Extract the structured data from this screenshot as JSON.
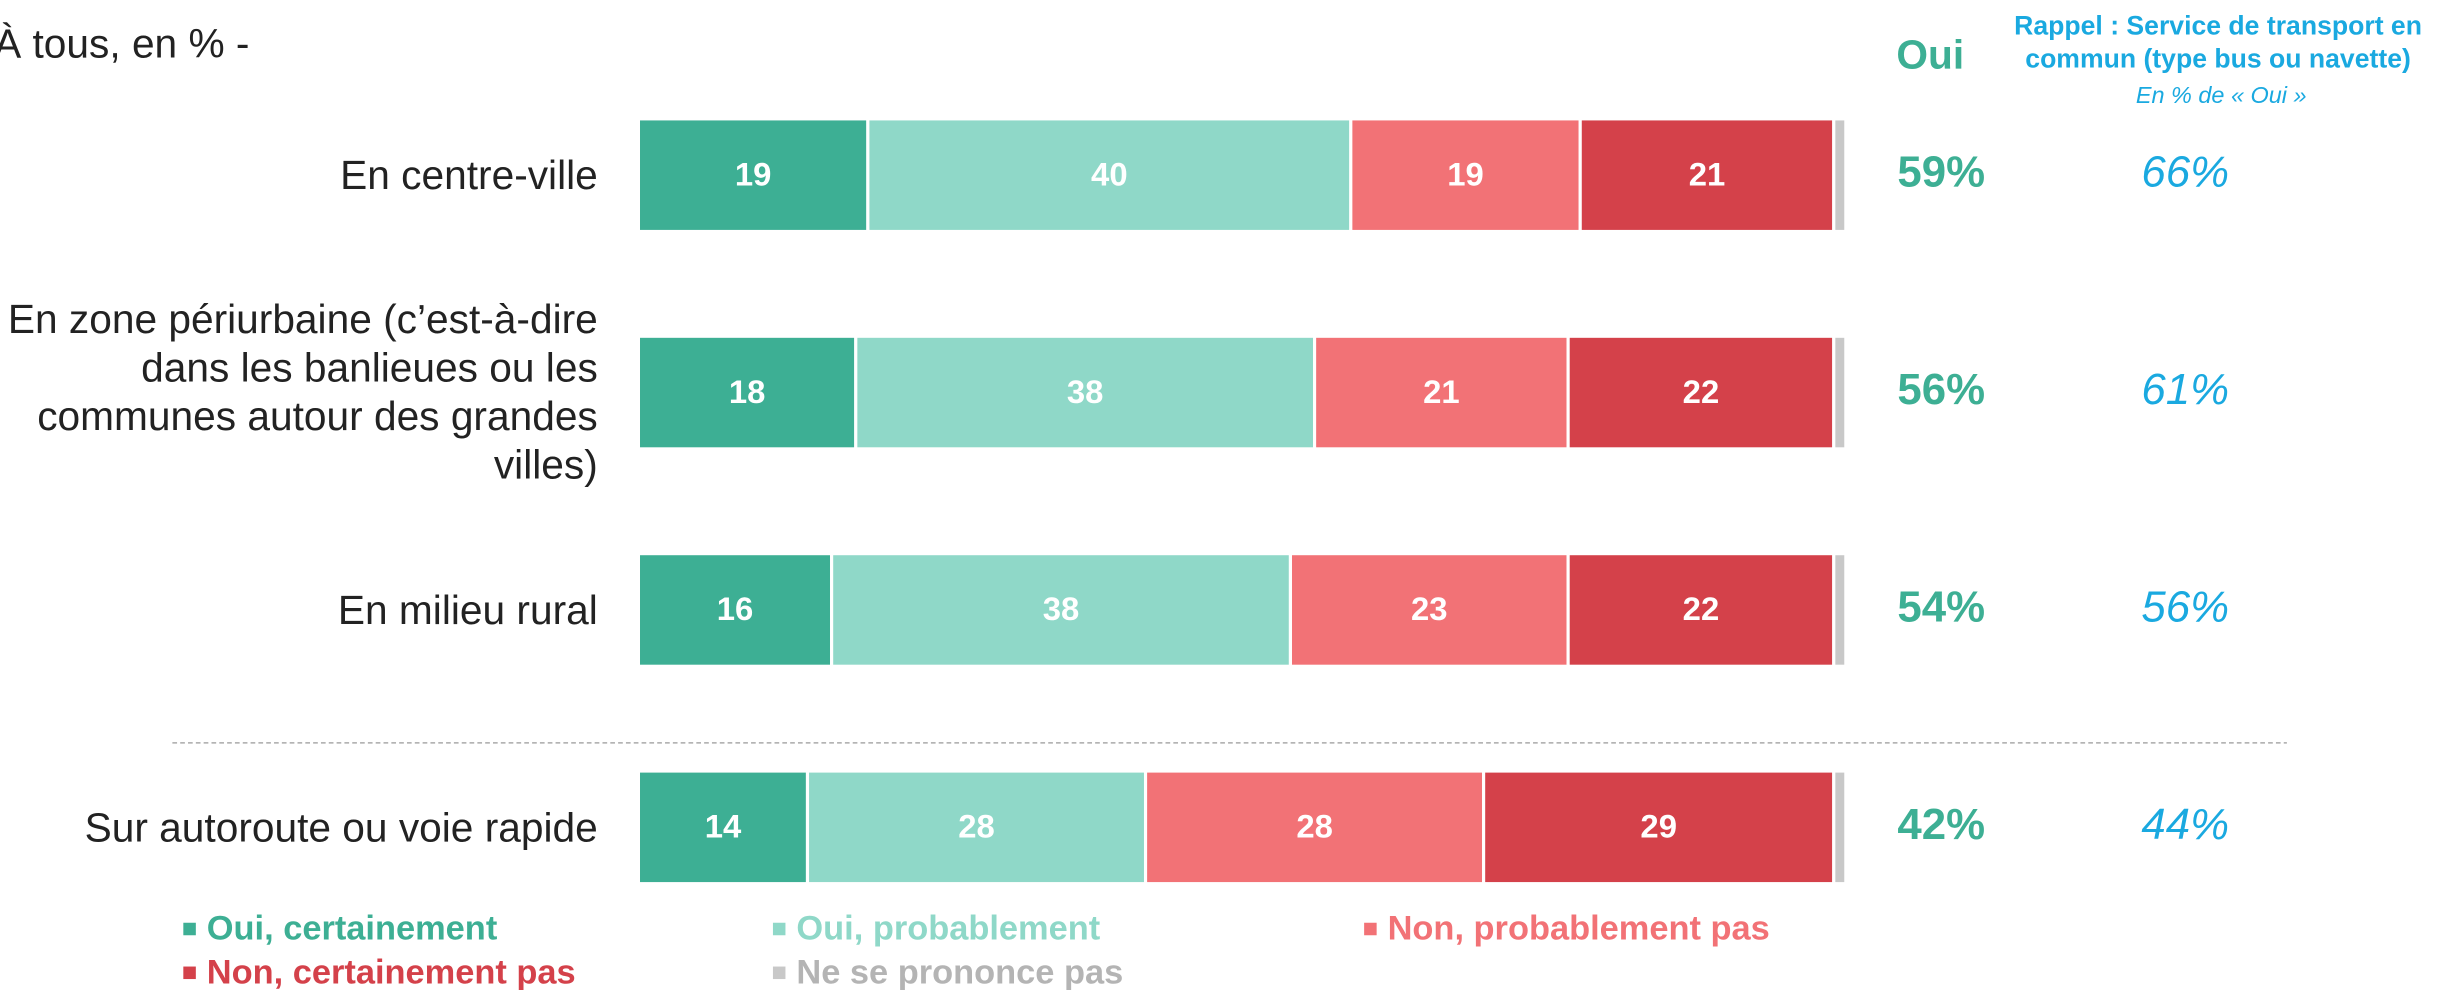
{
  "chart_data": {
    "type": "stacked_barh",
    "subtitle": "À tous, en % -",
    "categories": [
      "En centre-ville",
      "En zone périurbaine (c’est-à-dire dans les banlieues ou les communes autour des grandes villes)",
      "En milieu rural",
      "Sur autoroute ou voie rapide"
    ],
    "series": [
      {
        "name": "Oui, certainement",
        "color": "#3daf94",
        "values": [
          19,
          18,
          16,
          14
        ]
      },
      {
        "name": "Oui, probablement",
        "color": "#8fd8c8",
        "values": [
          40,
          38,
          38,
          28
        ]
      },
      {
        "name": "Non, probablement pas",
        "color": "#f27276",
        "values": [
          19,
          21,
          23,
          28
        ]
      },
      {
        "name": "Non, certainement pas",
        "color": "#d4414a",
        "values": [
          21,
          22,
          22,
          29
        ]
      },
      {
        "name": "Ne se prononce pas",
        "color": "#c8c8c8",
        "values": [
          1,
          1,
          1,
          1
        ]
      }
    ],
    "xlim": [
      0,
      100
    ],
    "oui": {
      "title": "Oui",
      "color": "#3daf94",
      "values": [
        59,
        56,
        54,
        42
      ],
      "value_labels": [
        "59%",
        "56%",
        "54%",
        "42%"
      ]
    },
    "rappel": {
      "title": "Rappel : Service de transport en commun (type bus ou navette)",
      "subtitle": "En % de « Oui »",
      "color": "#1aa9e0",
      "values": [
        66,
        61,
        56,
        44
      ],
      "value_labels": [
        "66%",
        "61%",
        "56%",
        "44%"
      ]
    }
  }
}
